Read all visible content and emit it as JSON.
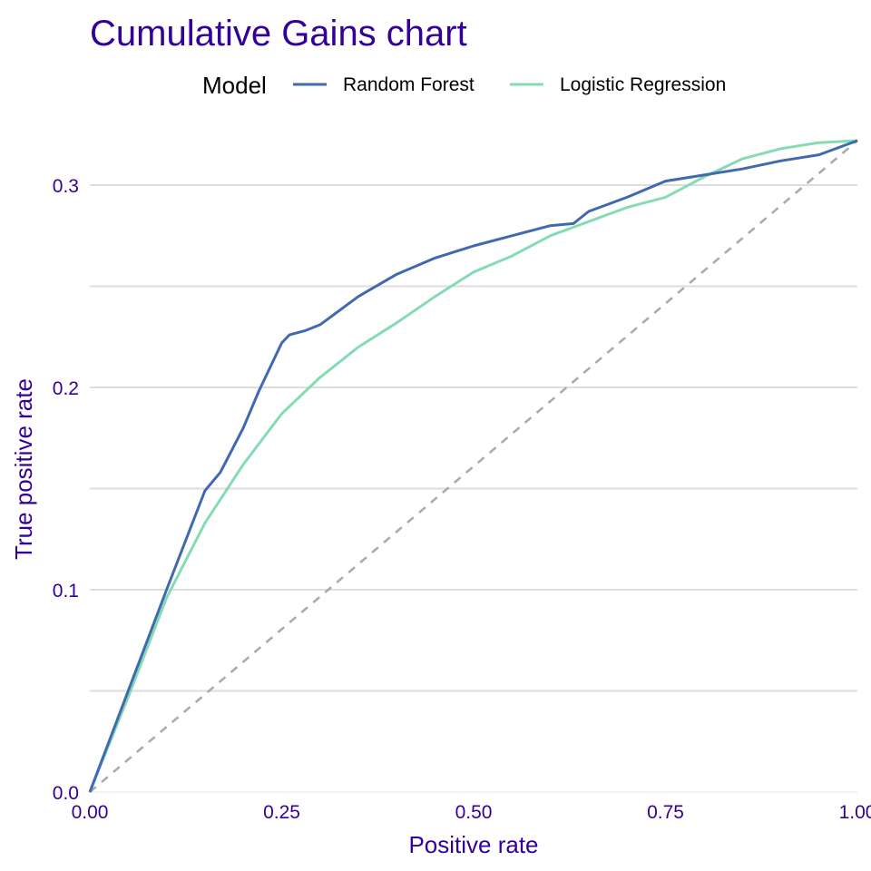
{
  "chart_data": {
    "type": "line",
    "title": "Cumulative Gains chart",
    "xlabel": "Positive rate",
    "ylabel": "True positive rate",
    "xlim": [
      0,
      1
    ],
    "ylim": [
      0,
      0.322
    ],
    "x_ticks": [
      "0.00",
      "0.25",
      "0.50",
      "0.75",
      "1.00"
    ],
    "y_ticks": [
      "0.0",
      "0.1",
      "0.2",
      "0.3"
    ],
    "legend_title": "Model",
    "legend_position": "top",
    "grid": "horizontal",
    "series": [
      {
        "name": "Random Forest",
        "color": "#4169b0",
        "x": [
          0,
          0.05,
          0.1,
          0.15,
          0.17,
          0.2,
          0.22,
          0.25,
          0.26,
          0.28,
          0.3,
          0.35,
          0.4,
          0.45,
          0.5,
          0.55,
          0.6,
          0.63,
          0.65,
          0.7,
          0.75,
          0.8,
          0.85,
          0.9,
          0.95,
          1.0
        ],
        "y": [
          0,
          0.05,
          0.1,
          0.149,
          0.158,
          0.18,
          0.198,
          0.222,
          0.226,
          0.228,
          0.231,
          0.245,
          0.256,
          0.264,
          0.27,
          0.275,
          0.28,
          0.281,
          0.287,
          0.294,
          0.302,
          0.305,
          0.308,
          0.312,
          0.315,
          0.322
        ]
      },
      {
        "name": "Logistic Regression",
        "color": "#85dbb3",
        "x": [
          0,
          0.05,
          0.1,
          0.15,
          0.2,
          0.25,
          0.3,
          0.35,
          0.4,
          0.45,
          0.5,
          0.55,
          0.6,
          0.65,
          0.7,
          0.75,
          0.8,
          0.85,
          0.9,
          0.95,
          1.0
        ],
        "y": [
          0,
          0.047,
          0.096,
          0.133,
          0.162,
          0.187,
          0.205,
          0.22,
          0.232,
          0.245,
          0.257,
          0.265,
          0.275,
          0.282,
          0.289,
          0.294,
          0.304,
          0.313,
          0.318,
          0.321,
          0.322
        ]
      },
      {
        "name": "baseline",
        "color": "#aaaaaa",
        "dashed": true,
        "x": [
          0,
          1
        ],
        "y": [
          0,
          0.322
        ]
      }
    ]
  }
}
